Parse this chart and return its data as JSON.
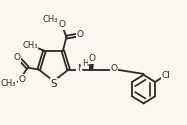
{
  "bg_color": "#fbf7ee",
  "line_color": "#2a2a2a",
  "lw": 1.3,
  "xlim": [
    0,
    10
  ],
  "ylim": [
    0,
    6.5
  ],
  "figsize": [
    1.87,
    1.25
  ],
  "dpi": 100
}
